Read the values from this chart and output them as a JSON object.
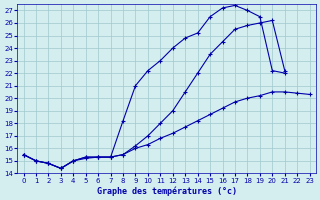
{
  "title": "Graphe des températures (°c)",
  "bg_color": "#d4eef0",
  "grid_color": "#a0c8cc",
  "line_color": "#0000aa",
  "xlim": [
    -0.5,
    23.5
  ],
  "ylim": [
    14,
    27.5
  ],
  "xticks": [
    0,
    1,
    2,
    3,
    4,
    5,
    6,
    7,
    8,
    9,
    10,
    11,
    12,
    13,
    14,
    15,
    16,
    17,
    18,
    19,
    20,
    21,
    22,
    23
  ],
  "yticks": [
    14,
    15,
    16,
    17,
    18,
    19,
    20,
    21,
    22,
    23,
    24,
    25,
    26,
    27
  ],
  "line1_x": [
    0,
    1,
    2,
    3,
    4,
    5,
    6,
    7,
    8,
    9,
    10,
    11,
    12,
    13,
    14,
    15,
    16,
    17,
    18,
    19,
    20,
    21
  ],
  "line1_y": [
    15.5,
    15.0,
    14.8,
    14.4,
    15.0,
    15.3,
    15.3,
    15.3,
    18.2,
    21.0,
    22.2,
    23.0,
    24.0,
    24.8,
    25.2,
    26.5,
    27.2,
    27.4,
    27.0,
    26.5,
    22.2,
    22.0
  ],
  "line2_x": [
    0,
    1,
    2,
    3,
    4,
    5,
    6,
    7,
    8,
    9,
    10,
    11,
    12,
    13,
    14,
    15,
    16,
    17,
    18,
    19,
    20,
    21
  ],
  "line2_y": [
    15.5,
    15.0,
    14.8,
    14.4,
    15.0,
    15.3,
    15.3,
    15.3,
    15.5,
    16.2,
    17.0,
    18.0,
    19.0,
    20.5,
    22.0,
    23.5,
    24.5,
    25.5,
    25.8,
    26.0,
    26.2,
    22.2
  ],
  "line3_x": [
    0,
    1,
    2,
    3,
    4,
    5,
    6,
    7,
    8,
    9,
    10,
    11,
    12,
    13,
    14,
    15,
    16,
    17,
    18,
    19,
    20,
    21,
    22,
    23
  ],
  "line3_y": [
    15.5,
    15.0,
    14.8,
    14.4,
    15.0,
    15.2,
    15.3,
    15.3,
    15.5,
    16.0,
    16.3,
    16.8,
    17.2,
    17.7,
    18.2,
    18.7,
    19.2,
    19.7,
    20.0,
    20.2,
    20.5,
    20.5,
    20.4,
    20.3
  ],
  "tick_fontsize": 5,
  "label_fontsize": 6
}
